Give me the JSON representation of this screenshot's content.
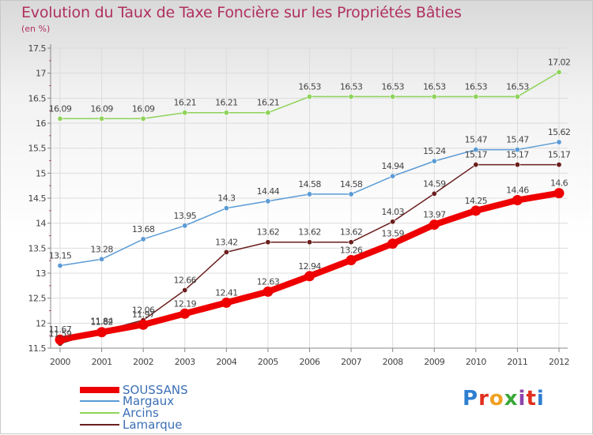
{
  "chart_title": "Evolution du Taux de Taxe Foncière sur les Propriétés Bâties",
  "chart_subtitle": "(en %)",
  "logo_text": "Proxiti",
  "chart_data": {
    "type": "line",
    "x": [
      "2000",
      "2001",
      "2002",
      "2003",
      "2004",
      "2005",
      "2006",
      "2007",
      "2008",
      "2009",
      "2010",
      "2011",
      "2012"
    ],
    "ylim": [
      11.5,
      17.5
    ],
    "yticks": [
      "11.5",
      "12",
      "12.5",
      "13",
      "13.5",
      "14",
      "14.5",
      "15",
      "15.5",
      "16",
      "16.5",
      "17",
      "17.5"
    ],
    "grid": true,
    "legend_position": "bottom-left",
    "series": [
      {
        "name": "SOUSSANS",
        "color": "#ee0000",
        "values": [
          11.67,
          11.82,
          11.97,
          12.19,
          12.41,
          12.63,
          12.94,
          13.26,
          13.59,
          13.97,
          14.25,
          14.46,
          14.6
        ],
        "labels": [
          "11.67",
          "11.82",
          "11.97",
          "12.19",
          "12.41",
          "12.63",
          "12.94",
          "13.26",
          "13.59",
          "13.97",
          "14.25",
          "14.46",
          "14.6"
        ]
      },
      {
        "name": "Margaux",
        "color": "#5b9bd5",
        "values": [
          13.15,
          13.28,
          13.68,
          13.95,
          14.3,
          14.44,
          14.58,
          14.58,
          14.94,
          15.24,
          15.47,
          15.47,
          15.62
        ],
        "labels": [
          "13.15",
          "13.28",
          "13.68",
          "13.95",
          "14.3",
          "14.44",
          "14.58",
          "14.58",
          "14.94",
          "15.24",
          "15.47",
          "15.47",
          "15.62"
        ]
      },
      {
        "name": "Arcins",
        "color": "#8ed35a",
        "values": [
          16.09,
          16.09,
          16.09,
          16.21,
          16.21,
          16.21,
          16.53,
          16.53,
          16.53,
          16.53,
          16.53,
          16.53,
          17.02
        ],
        "labels": [
          "16.09",
          "16.09",
          "16.09",
          "16.21",
          "16.21",
          "16.21",
          "16.53",
          "16.53",
          "16.53",
          "16.53",
          "16.53",
          "16.53",
          "17.02"
        ]
      },
      {
        "name": "Lamarque",
        "color": "#6b1e1e",
        "values": [
          11.59,
          11.84,
          12.06,
          12.66,
          13.42,
          13.62,
          13.62,
          13.62,
          14.03,
          14.59,
          15.17,
          15.17,
          15.17
        ],
        "labels": [
          "11.59",
          "11.84",
          "12.06",
          "12.66",
          "13.42",
          "13.62",
          "13.62",
          "13.62",
          "14.03",
          "14.59",
          "15.17",
          "15.17",
          "15.17"
        ]
      }
    ]
  }
}
